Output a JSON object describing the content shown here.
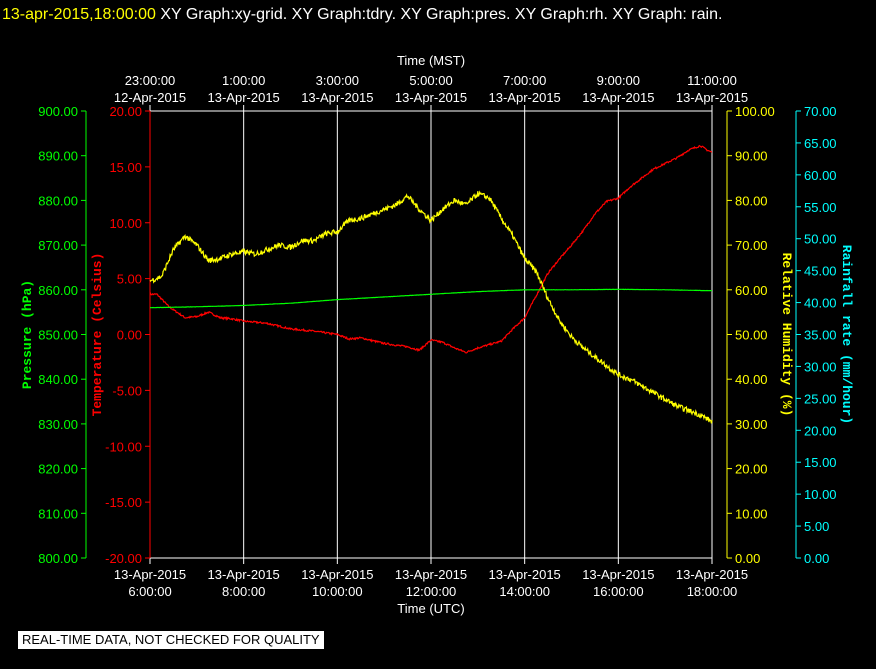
{
  "header": {
    "timestamp": "13-apr-2015,18:00:00",
    "graphs": "XY Graph:xy-grid.  XY Graph:tdry.  XY Graph:pres.  XY Graph:rh.  XY Graph: rain."
  },
  "notice": "REAL-TIME DATA, NOT CHECKED FOR QUALITY",
  "colors": {
    "background": "#000000",
    "grid": "#ffffff",
    "temperature": "#ff0000",
    "pressure": "#00ff00",
    "humidity": "#ffff00",
    "rainfall": "#00ffff",
    "text": "#ffffff"
  },
  "chart_data": {
    "type": "line",
    "x_top": {
      "label": "Time (MST)",
      "ticks": [
        {
          "time": "23:00:00",
          "date": "12-Apr-2015"
        },
        {
          "time": "1:00:00",
          "date": "13-Apr-2015"
        },
        {
          "time": "3:00:00",
          "date": "13-Apr-2015"
        },
        {
          "time": "5:00:00",
          "date": "13-Apr-2015"
        },
        {
          "time": "7:00:00",
          "date": "13-Apr-2015"
        },
        {
          "time": "9:00:00",
          "date": "13-Apr-2015"
        },
        {
          "time": "11:00:00",
          "date": "13-Apr-2015"
        }
      ]
    },
    "x_bottom": {
      "label": "Time (UTC)",
      "range": [
        "13-Apr-2015 6:00:00",
        "13-Apr-2015 18:00:00"
      ],
      "ticks": [
        {
          "date": "13-Apr-2015",
          "time": "6:00:00"
        },
        {
          "date": "13-Apr-2015",
          "time": "8:00:00"
        },
        {
          "date": "13-Apr-2015",
          "time": "10:00:00"
        },
        {
          "date": "13-Apr-2015",
          "time": "12:00:00"
        },
        {
          "date": "13-Apr-2015",
          "time": "14:00:00"
        },
        {
          "date": "13-Apr-2015",
          "time": "16:00:00"
        },
        {
          "date": "13-Apr-2015",
          "time": "18:00:00"
        }
      ]
    },
    "grid": true,
    "axes": {
      "pressure": {
        "label": "Pressure (hPa)",
        "range": [
          800,
          900
        ],
        "ticks": [
          "800.00",
          "810.00",
          "820.00",
          "830.00",
          "840.00",
          "850.00",
          "860.00",
          "870.00",
          "880.00",
          "890.00",
          "900.00"
        ]
      },
      "temperature": {
        "label": "Temperature (Celsius)",
        "range": [
          -20,
          20
        ],
        "ticks": [
          "-20.00",
          "-15.00",
          "-10.00",
          "-5.00",
          "0.00",
          "5.00",
          "10.00",
          "15.00",
          "20.00"
        ]
      },
      "humidity": {
        "label": "Relative Humidity (%)",
        "range": [
          0,
          100
        ],
        "ticks": [
          "0.00",
          "10.00",
          "20.00",
          "30.00",
          "40.00",
          "50.00",
          "60.00",
          "70.00",
          "80.00",
          "90.00",
          "100.00"
        ]
      },
      "rainfall": {
        "label": "Rainfall rate (mm/hour)",
        "range": [
          0,
          70
        ],
        "ticks": [
          "0.00",
          "5.00",
          "10.00",
          "15.00",
          "20.00",
          "25.00",
          "30.00",
          "35.00",
          "40.00",
          "45.00",
          "50.00",
          "55.00",
          "60.00",
          "65.00",
          "70.00"
        ]
      }
    },
    "series": [
      {
        "name": "Temperature (Celsius)",
        "axis": "temperature",
        "x_hours_utc": [
          6.0,
          6.15,
          6.4,
          6.75,
          7.0,
          7.25,
          7.5,
          7.75,
          8.0,
          8.5,
          9.0,
          9.5,
          10.0,
          10.25,
          10.5,
          11.0,
          11.5,
          11.75,
          12.0,
          12.25,
          12.5,
          12.75,
          13.0,
          13.25,
          13.5,
          13.75,
          14.0,
          14.25,
          14.5,
          14.75,
          15.0,
          15.25,
          15.5,
          15.75,
          16.0,
          16.25,
          16.5,
          16.75,
          17.0,
          17.25,
          17.5,
          17.75,
          17.9,
          18.0
        ],
        "values": [
          3.6,
          3.6,
          2.5,
          1.5,
          1.6,
          2.0,
          1.5,
          1.4,
          1.2,
          1.0,
          0.5,
          0.3,
          0.0,
          -0.4,
          -0.3,
          -0.8,
          -1.1,
          -1.4,
          -0.5,
          -0.7,
          -1.2,
          -1.6,
          -1.2,
          -0.9,
          -0.6,
          0.5,
          1.5,
          3.5,
          5.5,
          6.8,
          8.0,
          9.3,
          10.8,
          11.9,
          12.2,
          13.2,
          14.0,
          14.8,
          15.3,
          15.8,
          16.5,
          16.9,
          16.5,
          16.3
        ]
      },
      {
        "name": "Pressure (hPa)",
        "axis": "pressure",
        "x_hours_utc": [
          6.0,
          7.0,
          8.0,
          9.0,
          10.0,
          11.0,
          12.0,
          13.0,
          14.0,
          15.0,
          16.0,
          17.0,
          18.0
        ],
        "values": [
          856.0,
          856.2,
          856.5,
          857.0,
          857.8,
          858.4,
          859.0,
          859.6,
          860.0,
          860.0,
          860.1,
          860.0,
          859.8
        ]
      },
      {
        "name": "Relative Humidity (%)",
        "axis": "humidity",
        "x_hours_utc": [
          6.0,
          6.25,
          6.5,
          6.75,
          7.0,
          7.25,
          7.5,
          7.75,
          8.0,
          8.25,
          8.5,
          8.75,
          9.0,
          9.25,
          9.5,
          9.75,
          10.0,
          10.25,
          10.5,
          10.75,
          11.0,
          11.25,
          11.5,
          11.75,
          12.0,
          12.25,
          12.5,
          12.75,
          13.0,
          13.25,
          13.5,
          13.75,
          14.0,
          14.25,
          14.5,
          14.75,
          15.0,
          15.25,
          15.5,
          15.75,
          16.0,
          16.25,
          16.5,
          16.75,
          17.0,
          17.25,
          17.5,
          17.75,
          18.0
        ],
        "values": [
          62.0,
          63.0,
          69.0,
          72.0,
          70.0,
          66.5,
          67.0,
          68.0,
          68.5,
          68.0,
          69.0,
          70.0,
          69.5,
          71.0,
          71.0,
          72.5,
          73.0,
          75.5,
          76.0,
          77.0,
          78.0,
          79.0,
          81.0,
          78.0,
          75.5,
          78.0,
          80.0,
          79.0,
          81.5,
          80.5,
          76.0,
          72.0,
          67.0,
          64.0,
          58.0,
          53.0,
          49.5,
          47.0,
          45.0,
          43.0,
          41.0,
          40.0,
          38.5,
          37.0,
          35.5,
          34.0,
          33.0,
          32.0,
          30.5
        ]
      },
      {
        "name": "Rainfall rate (mm/hour)",
        "axis": "rainfall",
        "x_hours_utc": [],
        "values": []
      }
    ]
  }
}
